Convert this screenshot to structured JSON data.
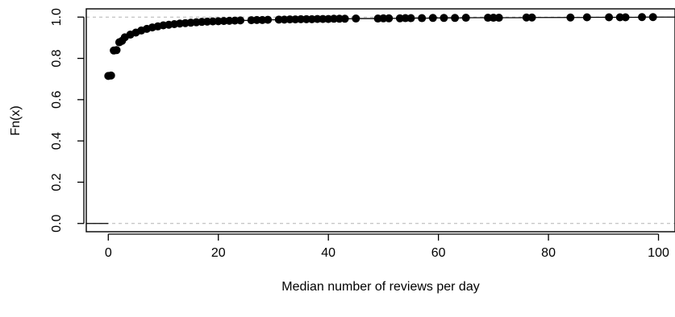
{
  "chart_data": {
    "type": "scatter",
    "subtype": "ecdf-step",
    "title": "",
    "xlabel": "Median number of reviews per day",
    "ylabel": "Fn(x)",
    "xlim": [
      -4,
      103
    ],
    "ylim": [
      -0.04,
      1.04
    ],
    "xticks": [
      0,
      20,
      40,
      60,
      80,
      100
    ],
    "xtick_labels": [
      "0",
      "20",
      "40",
      "60",
      "80",
      "100"
    ],
    "yticks": [
      0.0,
      0.2,
      0.4,
      0.6,
      0.8,
      1.0
    ],
    "ytick_labels": [
      "0.0",
      "0.2",
      "0.4",
      "0.6",
      "0.8",
      "1.0"
    ],
    "reference_lines_y": [
      0,
      1
    ],
    "grid": false,
    "legend": "none",
    "colors": {
      "points": "#000000",
      "step_line": "#000000",
      "reference_line": "#b3b3b3"
    },
    "series": [
      {
        "x": [
          0,
          0.5,
          1,
          1.5,
          2,
          2.5,
          3,
          4,
          5,
          6,
          7,
          8,
          9,
          10,
          11,
          12,
          13,
          14,
          15,
          16,
          17,
          18,
          19,
          20,
          21,
          22,
          23,
          24,
          26,
          27,
          28,
          29,
          31,
          32,
          33,
          34,
          35,
          36,
          37,
          38,
          39,
          40,
          41,
          42,
          43,
          45,
          49,
          50,
          51,
          53,
          54,
          55,
          57,
          59,
          61,
          63,
          65,
          69,
          70,
          71,
          76,
          77,
          84,
          87,
          91,
          93,
          94,
          97,
          99
        ],
        "y": [
          0.715,
          0.717,
          0.838,
          0.84,
          0.878,
          0.885,
          0.902,
          0.915,
          0.925,
          0.935,
          0.943,
          0.95,
          0.955,
          0.96,
          0.963,
          0.966,
          0.969,
          0.971,
          0.973,
          0.975,
          0.977,
          0.978,
          0.979,
          0.98,
          0.981,
          0.982,
          0.983,
          0.984,
          0.985,
          0.986,
          0.986,
          0.987,
          0.988,
          0.988,
          0.989,
          0.989,
          0.99,
          0.99,
          0.99,
          0.991,
          0.991,
          0.991,
          0.992,
          0.992,
          0.992,
          0.993,
          0.993,
          0.994,
          0.994,
          0.994,
          0.995,
          0.995,
          0.995,
          0.996,
          0.996,
          0.996,
          0.997,
          0.997,
          0.997,
          0.997,
          0.998,
          0.998,
          0.998,
          0.999,
          0.999,
          0.999,
          0.999,
          1.0,
          1.0
        ]
      }
    ]
  }
}
